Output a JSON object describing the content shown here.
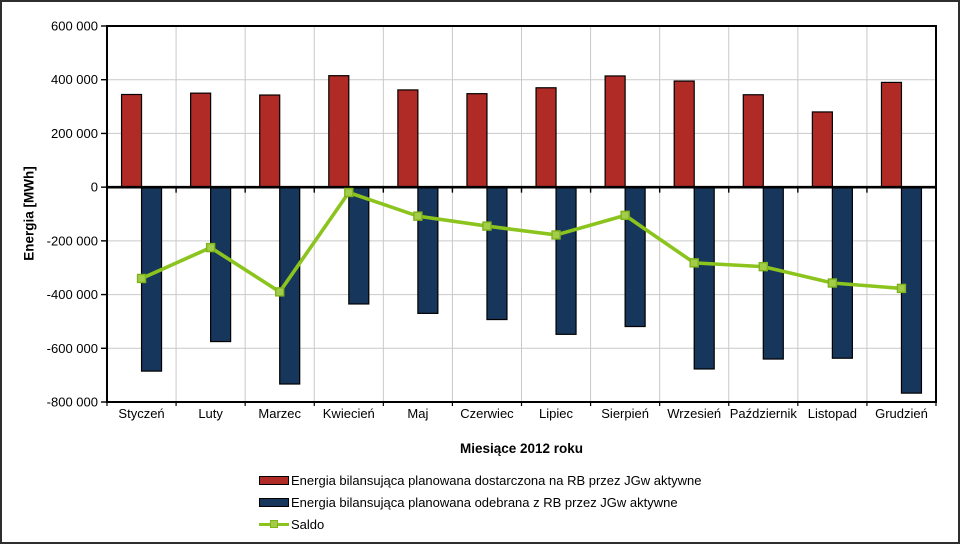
{
  "chart_data": {
    "type": "bar",
    "categories": [
      "Styczeń",
      "Luty",
      "Marzec",
      "Kwiecień",
      "Maj",
      "Czerwiec",
      "Lipiec",
      "Sierpień",
      "Wrzesień",
      "Październik",
      "Listopad",
      "Grudzień"
    ],
    "series": [
      {
        "name": "Energia bilansująca planowana dostarczona na RB przez JGw aktywne",
        "type": "bar",
        "color": "#B02A26",
        "border_color": "#000000",
        "values": [
          345000,
          350000,
          343000,
          415000,
          362000,
          348000,
          370000,
          414000,
          395000,
          344000,
          280000,
          390000
        ]
      },
      {
        "name": "Energia bilansująca planowana odebrana z RB przez JGw aktywne",
        "type": "bar",
        "color": "#17365C",
        "border_color": "#000000",
        "values": [
          -685000,
          -575000,
          -733000,
          -435000,
          -470000,
          -493000,
          -548000,
          -519000,
          -677000,
          -640000,
          -637000,
          -767000
        ]
      },
      {
        "name": "Saldo",
        "type": "line",
        "color": "#8CC41E",
        "marker_fill": "#A2CC4A",
        "marker_stroke": "#7FB31A",
        "values": [
          -340000,
          -225000,
          -390000,
          -20000,
          -108000,
          -145000,
          -178000,
          -105000,
          -282000,
          -296000,
          -357000,
          -377000
        ]
      }
    ],
    "xlabel": "Miesiące 2012 roku",
    "ylabel": "Energia [MWh]",
    "ylim": [
      -800000,
      600000
    ],
    "ytick_step": 200000,
    "ytick_labels": [
      "600 000",
      "400 000",
      "200 000",
      "0",
      "-200 000",
      "-400 000",
      "-600 000",
      "-800 000"
    ],
    "grid": true,
    "legend_position": "bottom",
    "gridline_color": "#C9C9C9",
    "axis_color": "#000000",
    "background": "#FFFFFF"
  }
}
